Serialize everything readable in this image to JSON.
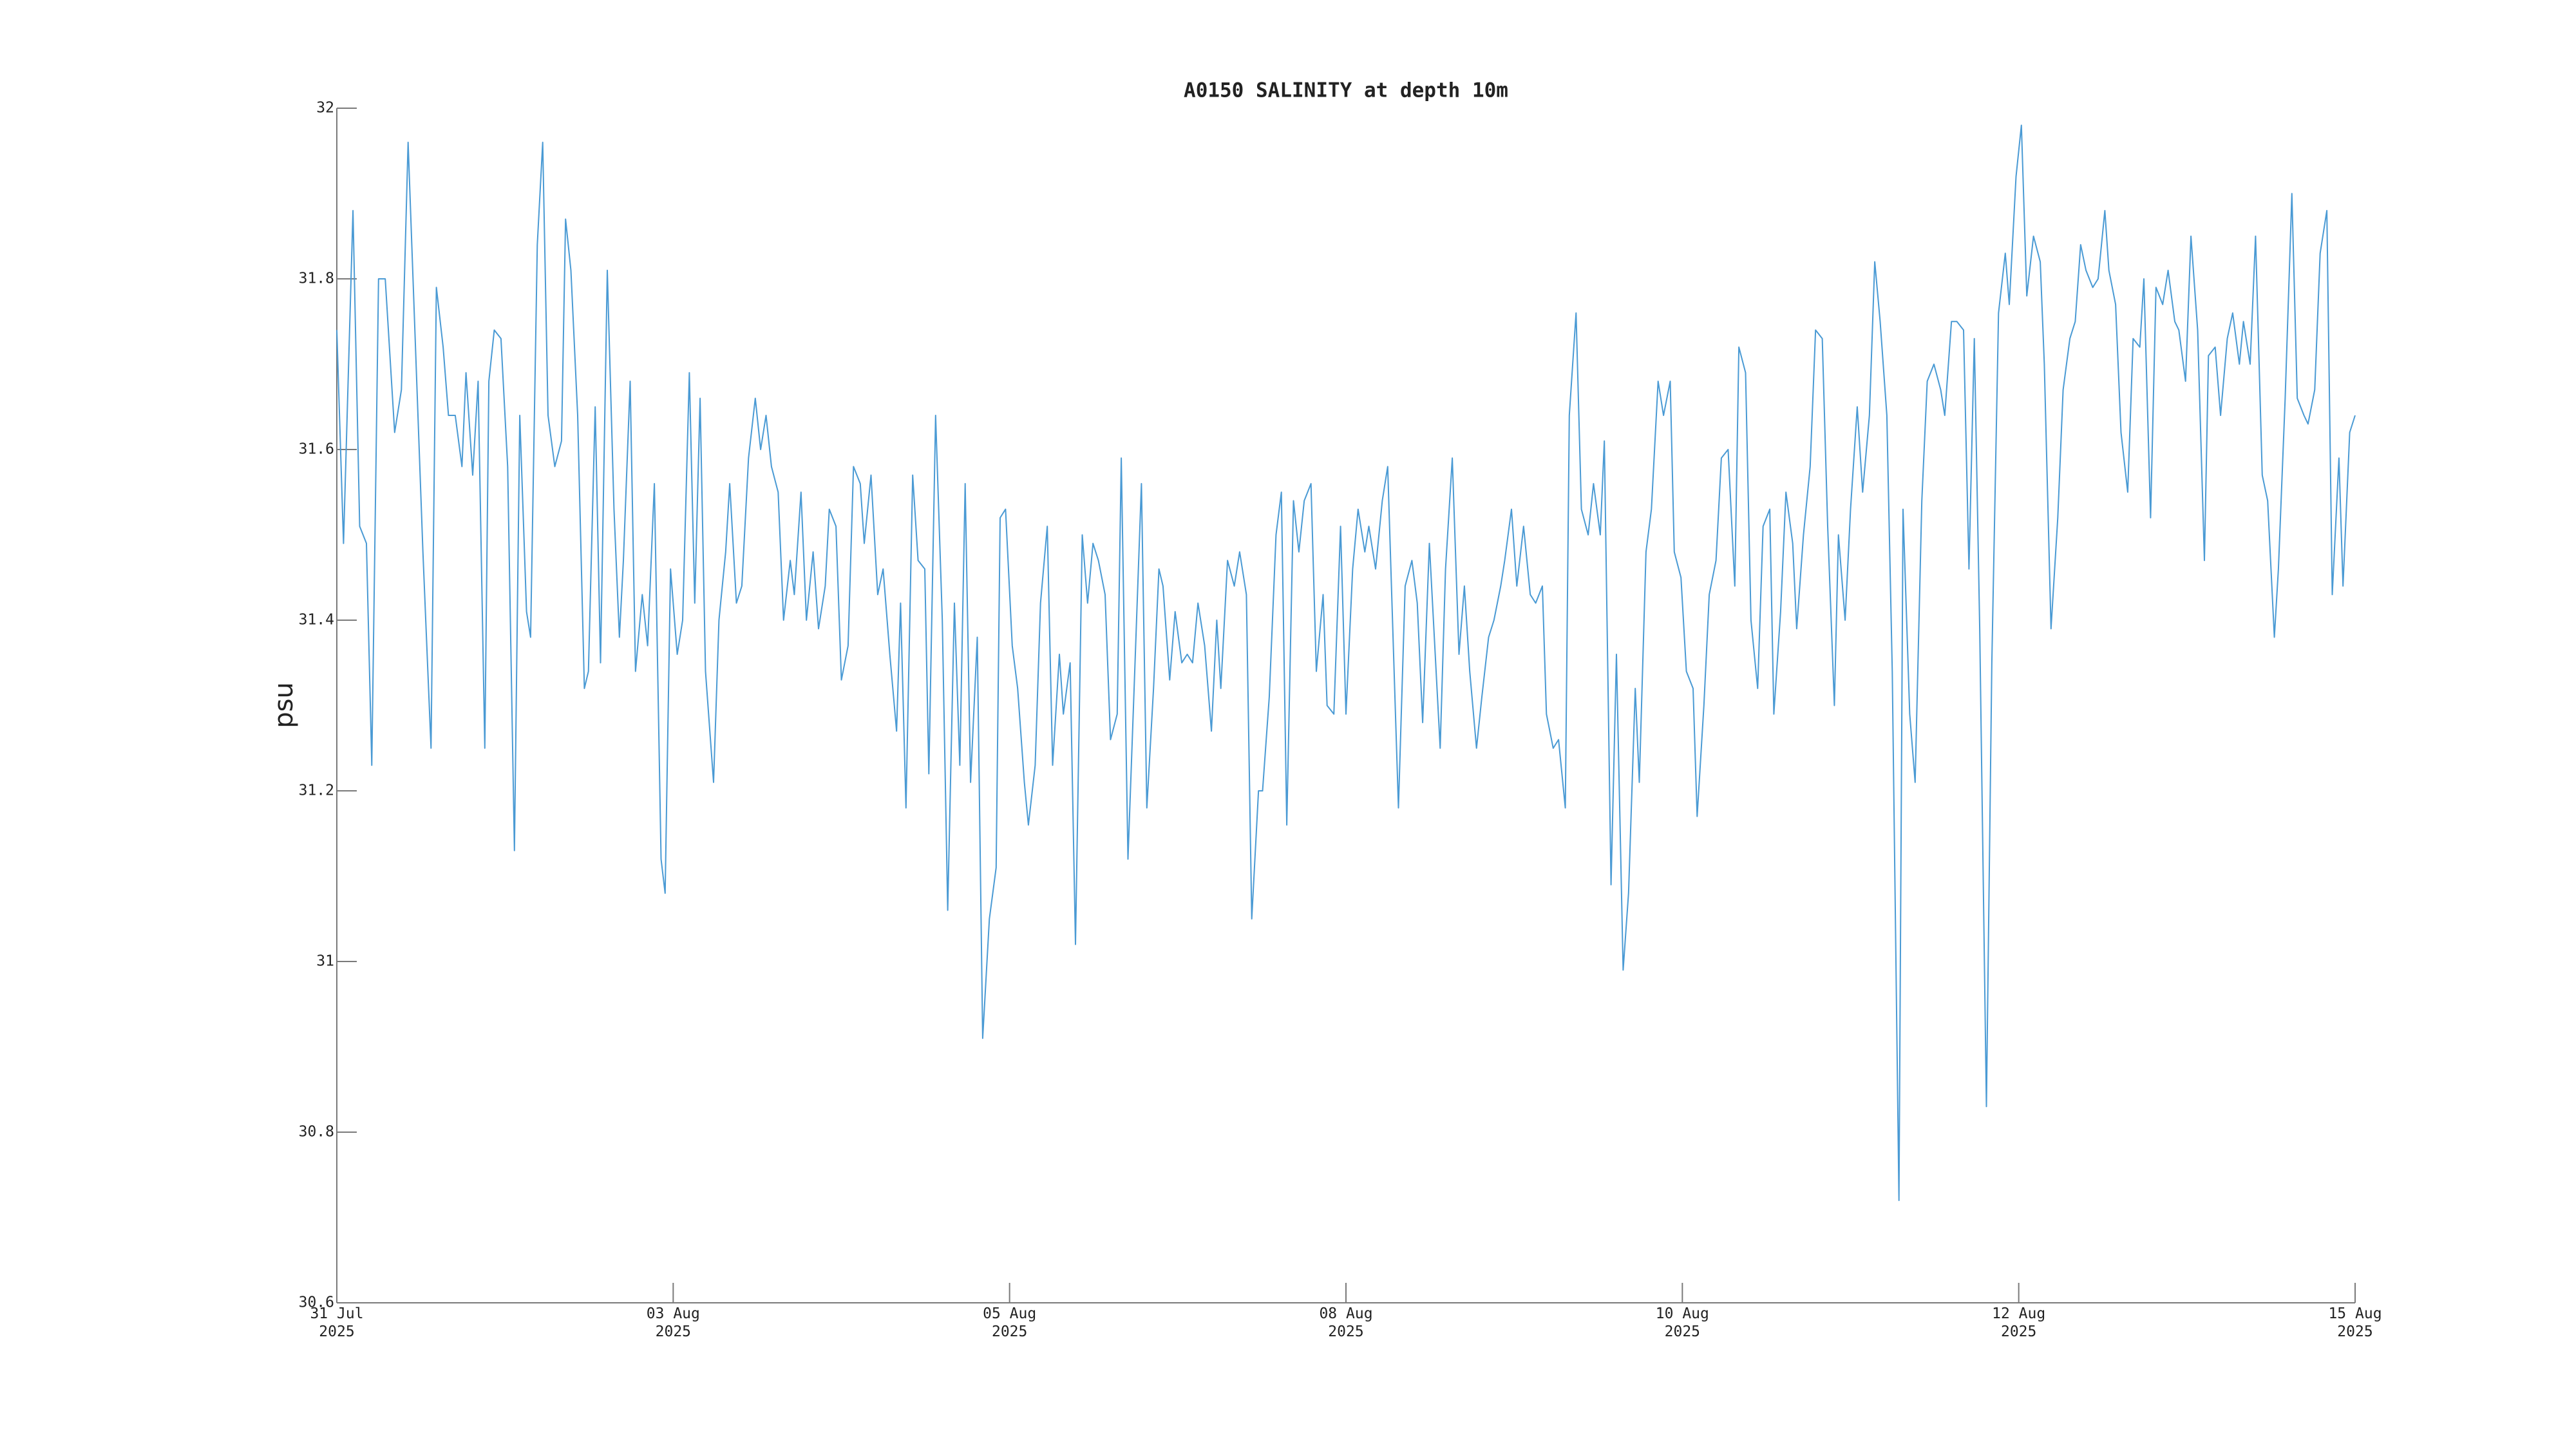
{
  "chart_data": {
    "type": "line",
    "title": "A0150 SALINITY at depth 10m",
    "ylabel": "psu",
    "color": "#4a9ad4",
    "xlim": [
      0,
      15
    ],
    "xticks": [
      {
        "value": 0,
        "label": "31 Jul\n2025"
      },
      {
        "value": 2.5,
        "label": "03 Aug\n2025"
      },
      {
        "value": 5,
        "label": "05 Aug\n2025"
      },
      {
        "value": 7.5,
        "label": "08 Aug\n2025"
      },
      {
        "value": 10,
        "label": "10 Aug\n2025"
      },
      {
        "value": 12.5,
        "label": "12 Aug\n2025"
      },
      {
        "value": 15,
        "label": "15 Aug\n2025"
      }
    ],
    "ylim": [
      30.6,
      32
    ],
    "yticks": [
      {
        "value": 30.6,
        "label": "30.6"
      },
      {
        "value": 30.8,
        "label": "30.8"
      },
      31,
      {
        "value": 31.2,
        "label": "31.2"
      },
      {
        "value": 31.4,
        "label": "31.4"
      },
      {
        "value": 31.6,
        "label": "31.6"
      },
      {
        "value": 31.8,
        "label": "31.8"
      },
      32
    ],
    "x": [
      0,
      0.05,
      0.12,
      0.17,
      0.22,
      0.26,
      0.31,
      0.36,
      0.43,
      0.48,
      0.53,
      0.58,
      0.64,
      0.7,
      0.74,
      0.79,
      0.83,
      0.88,
      0.93,
      0.96,
      1.01,
      1.05,
      1.1,
      1.13,
      1.17,
      1.22,
      1.27,
      1.32,
      1.36,
      1.41,
      1.44,
      1.49,
      1.53,
      1.57,
      1.62,
      1.67,
      1.7,
      1.74,
      1.79,
      1.84,
      1.87,
      1.92,
      1.96,
      2.01,
      2.06,
      2.1,
      2.13,
      2.18,
      2.22,
      2.27,
      2.31,
      2.36,
      2.41,
      2.44,
      2.48,
      2.53,
      2.57,
      2.62,
      2.66,
      2.7,
      2.74,
      2.8,
      2.84,
      2.89,
      2.92,
      2.97,
      3.01,
      3.06,
      3.11,
      3.15,
      3.19,
      3.23,
      3.28,
      3.32,
      3.37,
      3.4,
      3.45,
      3.49,
      3.54,
      3.58,
      3.63,
      3.66,
      3.71,
      3.75,
      3.8,
      3.84,
      3.89,
      3.92,
      3.97,
      4.02,
      4.06,
      4.11,
      4.16,
      4.19,
      4.23,
      4.28,
      4.32,
      4.37,
      4.4,
      4.45,
      4.5,
      4.54,
      4.59,
      4.63,
      4.67,
      4.71,
      4.76,
      4.8,
      4.85,
      4.9,
      4.93,
      4.97,
      5.02,
      5.06,
      5.11,
      5.14,
      5.19,
      5.23,
      5.28,
      5.32,
      5.37,
      5.4,
      5.45,
      5.49,
      5.54,
      5.58,
      5.62,
      5.66,
      5.71,
      5.75,
      5.8,
      5.83,
      5.88,
      5.93,
      5.98,
      6.02,
      6.07,
      6.11,
      6.14,
      6.19,
      6.23,
      6.28,
      6.32,
      6.36,
      6.4,
      6.45,
      6.5,
      6.54,
      6.57,
      6.62,
      6.67,
      6.71,
      6.76,
      6.8,
      6.85,
      6.88,
      6.93,
      6.98,
      7.02,
      7.06,
      7.11,
      7.15,
      7.19,
      7.24,
      7.28,
      7.33,
      7.36,
      7.41,
      7.46,
      7.5,
      7.55,
      7.59,
      7.64,
      7.67,
      7.72,
      7.77,
      7.81,
      7.86,
      7.89,
      7.94,
      7.99,
      8.03,
      8.07,
      8.12,
      8.15,
      8.2,
      8.24,
      8.29,
      8.34,
      8.38,
      8.42,
      8.47,
      8.51,
      8.56,
      8.6,
      8.65,
      8.68,
      8.73,
      8.77,
      8.82,
      8.87,
      8.91,
      8.96,
      8.99,
      9.04,
      9.08,
      9.13,
      9.16,
      9.21,
      9.25,
      9.3,
      9.34,
      9.39,
      9.42,
      9.47,
      9.51,
      9.56,
      9.6,
      9.65,
      9.68,
      9.73,
      9.77,
      9.82,
      9.86,
      9.91,
      9.94,
      9.99,
      10.03,
      10.08,
      10.11,
      10.16,
      10.2,
      10.25,
      10.29,
      10.34,
      10.39,
      10.42,
      10.47,
      10.51,
      10.56,
      10.6,
      10.65,
      10.68,
      10.73,
      10.77,
      10.82,
      10.85,
      10.9,
      10.95,
      10.99,
      11.04,
      11.08,
      11.13,
      11.16,
      11.21,
      11.25,
      11.3,
      11.34,
      11.39,
      11.43,
      11.47,
      11.52,
      11.56,
      11.61,
      11.64,
      11.69,
      11.73,
      11.78,
      11.82,
      11.87,
      11.92,
      11.95,
      12.0,
      12.04,
      12.09,
      12.13,
      12.17,
      12.21,
      12.26,
      12.3,
      12.35,
      12.4,
      12.43,
      12.48,
      12.52,
      12.56,
      12.61,
      12.66,
      12.69,
      12.74,
      12.79,
      12.83,
      12.88,
      12.92,
      12.96,
      13.0,
      13.05,
      13.09,
      13.14,
      13.17,
      13.22,
      13.26,
      13.31,
      13.35,
      13.4,
      13.43,
      13.48,
      13.52,
      13.57,
      13.61,
      13.66,
      13.69,
      13.74,
      13.78,
      13.83,
      13.88,
      13.91,
      13.96,
      14.0,
      14.05,
      14.09,
      14.14,
      14.17,
      14.22,
      14.26,
      14.31,
      14.35,
      14.4,
      14.43,
      14.48,
      14.53,
      14.57,
      14.62,
      14.65,
      14.7,
      14.74,
      14.79,
      14.83,
      14.88,
      14.91,
      14.96,
      15.0
    ],
    "values": [
      31.74,
      31.49,
      31.88,
      31.51,
      31.49,
      31.23,
      31.8,
      31.8,
      31.62,
      31.67,
      31.96,
      31.74,
      31.48,
      31.25,
      31.79,
      31.72,
      31.64,
      31.64,
      31.58,
      31.69,
      31.57,
      31.68,
      31.25,
      31.68,
      31.74,
      31.73,
      31.58,
      31.13,
      31.64,
      31.41,
      31.38,
      31.84,
      31.96,
      31.64,
      31.58,
      31.61,
      31.87,
      31.81,
      31.64,
      31.32,
      31.34,
      31.65,
      31.35,
      31.81,
      31.53,
      31.38,
      31.47,
      31.68,
      31.34,
      31.43,
      31.37,
      31.56,
      31.12,
      31.08,
      31.46,
      31.36,
      31.4,
      31.69,
      31.42,
      31.66,
      31.34,
      31.21,
      31.4,
      31.48,
      31.56,
      31.42,
      31.44,
      31.59,
      31.66,
      31.6,
      31.64,
      31.58,
      31.55,
      31.4,
      31.47,
      31.43,
      31.55,
      31.4,
      31.48,
      31.39,
      31.44,
      31.53,
      31.51,
      31.33,
      31.37,
      31.58,
      31.56,
      31.49,
      31.57,
      31.43,
      31.46,
      31.36,
      31.27,
      31.42,
      31.18,
      31.57,
      31.47,
      31.46,
      31.22,
      31.64,
      31.4,
      31.06,
      31.42,
      31.23,
      31.56,
      31.21,
      31.38,
      30.91,
      31.05,
      31.11,
      31.52,
      31.53,
      31.37,
      31.32,
      31.21,
      31.16,
      31.23,
      31.42,
      31.51,
      31.23,
      31.36,
      31.29,
      31.35,
      31.02,
      31.5,
      31.42,
      31.49,
      31.47,
      31.43,
      31.26,
      31.29,
      31.59,
      31.12,
      31.34,
      31.56,
      31.18,
      31.32,
      31.46,
      31.44,
      31.33,
      31.41,
      31.35,
      31.36,
      31.35,
      31.42,
      31.37,
      31.27,
      31.4,
      31.32,
      31.47,
      31.44,
      31.48,
      31.43,
      31.05,
      31.2,
      31.2,
      31.31,
      31.5,
      31.55,
      31.16,
      31.54,
      31.48,
      31.54,
      31.56,
      31.34,
      31.43,
      31.3,
      31.29,
      31.51,
      31.29,
      31.46,
      31.53,
      31.48,
      31.51,
      31.46,
      31.54,
      31.58,
      31.33,
      31.18,
      31.44,
      31.47,
      31.42,
      31.28,
      31.49,
      31.4,
      31.25,
      31.46,
      31.59,
      31.36,
      31.44,
      31.34,
      31.25,
      31.31,
      31.38,
      31.4,
      31.44,
      31.47,
      31.53,
      31.44,
      31.51,
      31.43,
      31.42,
      31.44,
      31.29,
      31.25,
      31.26,
      31.18,
      31.64,
      31.76,
      31.53,
      31.5,
      31.56,
      31.5,
      31.61,
      31.09,
      31.36,
      30.99,
      31.08,
      31.32,
      31.21,
      31.48,
      31.53,
      31.68,
      31.64,
      31.68,
      31.48,
      31.45,
      31.34,
      31.32,
      31.17,
      31.3,
      31.43,
      31.47,
      31.59,
      31.6,
      31.44,
      31.72,
      31.69,
      31.4,
      31.32,
      31.51,
      31.53,
      31.29,
      31.41,
      31.55,
      31.49,
      31.39,
      31.5,
      31.58,
      31.74,
      31.73,
      31.51,
      31.3,
      31.5,
      31.4,
      31.53,
      31.65,
      31.55,
      31.64,
      31.82,
      31.75,
      31.64,
      31.34,
      30.72,
      31.53,
      31.29,
      31.21,
      31.54,
      31.68,
      31.7,
      31.67,
      31.64,
      31.75,
      31.75,
      31.74,
      31.46,
      31.73,
      31.39,
      30.83,
      31.35,
      31.76,
      31.83,
      31.77,
      31.92,
      31.98,
      31.78,
      31.85,
      31.82,
      31.7,
      31.39,
      31.52,
      31.67,
      31.73,
      31.75,
      31.84,
      31.81,
      31.79,
      31.8,
      31.88,
      31.81,
      31.77,
      31.62,
      31.55,
      31.73,
      31.72,
      31.8,
      31.52,
      31.79,
      31.77,
      31.81,
      31.75,
      31.74,
      31.68,
      31.85,
      31.74,
      31.47,
      31.71,
      31.72,
      31.64,
      31.73,
      31.76,
      31.7,
      31.75,
      31.7,
      31.85,
      31.57,
      31.54,
      31.38,
      31.46,
      31.66,
      31.9,
      31.66,
      31.64,
      31.63,
      31.67,
      31.83,
      31.88,
      31.43,
      31.59,
      31.44,
      31.62,
      31.64
    ]
  }
}
